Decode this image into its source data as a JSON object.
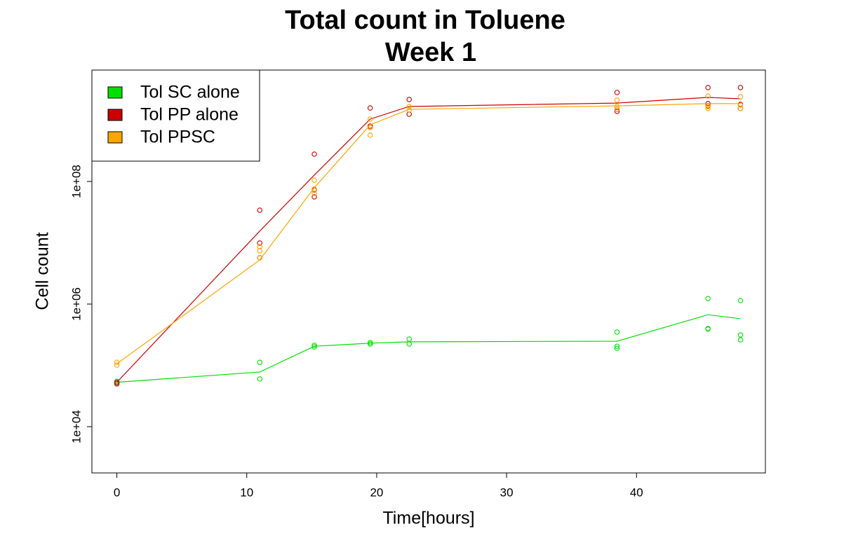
{
  "chart_data": {
    "type": "line",
    "title": "Total count in Toluene",
    "subtitle": "Week 1",
    "xlabel": "Time[hours]",
    "ylabel": "Cell count",
    "x": [
      0,
      11,
      15.2,
      19.5,
      22.5,
      38.5,
      45.5,
      48
    ],
    "xlim": [
      -1.92,
      49.92
    ],
    "xticks": [
      0,
      10,
      20,
      30,
      40
    ],
    "ylim": [
      1760,
      6560000000
    ],
    "log_y": true,
    "yticks": [
      {
        "value": 10000,
        "label": "1e+04"
      },
      {
        "value": 1000000,
        "label": "1e+06"
      },
      {
        "value": 100000000,
        "label": "1e+08"
      }
    ],
    "legend": "topleft",
    "series": [
      {
        "name": "Tol SC alone",
        "color": "#00e000",
        "values": [
          53000,
          78000,
          205000,
          230000,
          242000,
          248000,
          670000,
          576000
        ],
        "replicates": [
          [
            55000,
            51000
          ],
          [
            112000,
            60000
          ],
          [
            212000,
            200000
          ],
          [
            235000,
            223000
          ],
          [
            268000,
            223000
          ],
          [
            349000,
            205000,
            190000
          ],
          [
            1230000,
            398000,
            390000
          ],
          [
            1140000,
            314000,
            261000
          ]
        ]
      },
      {
        "name": "Tol PP alone",
        "color": "#cc0000",
        "values": [
          53000,
          15500000,
          127000000,
          1040000000,
          1670000000,
          1900000000,
          2350000000,
          2230000000
        ],
        "replicates": [
          [
            53000,
            50000
          ],
          [
            34000000,
            9900000,
            5700000
          ],
          [
            279000000,
            73000000,
            56000000
          ],
          [
            1580000000,
            800000000,
            760000000
          ],
          [
            2170000000,
            1250000000
          ],
          [
            2830000000,
            1500000000,
            1390000000
          ],
          [
            3400000000,
            1860000000,
            1710000000
          ],
          [
            3400000000,
            1810000000,
            1550000000
          ]
        ]
      },
      {
        "name": "Tol PPSC",
        "color": "#ffa500",
        "values": [
          106000,
          5250000,
          79000000,
          840000000,
          1500000000,
          1710000000,
          1860000000,
          1860000000
        ],
        "replicates": [
          [
            112000,
            101000
          ],
          [
            8600000,
            7400000,
            5700000
          ],
          [
            105000000,
            75000000,
            64000000
          ],
          [
            1040000000,
            760000000,
            570000000
          ],
          [
            1670000000,
            1470000000
          ],
          [
            2120000000,
            1670000000,
            1500000000
          ],
          [
            2480000000,
            1670000000,
            1550000000
          ],
          [
            2410000000,
            1760000000,
            1550000000
          ]
        ]
      }
    ]
  }
}
